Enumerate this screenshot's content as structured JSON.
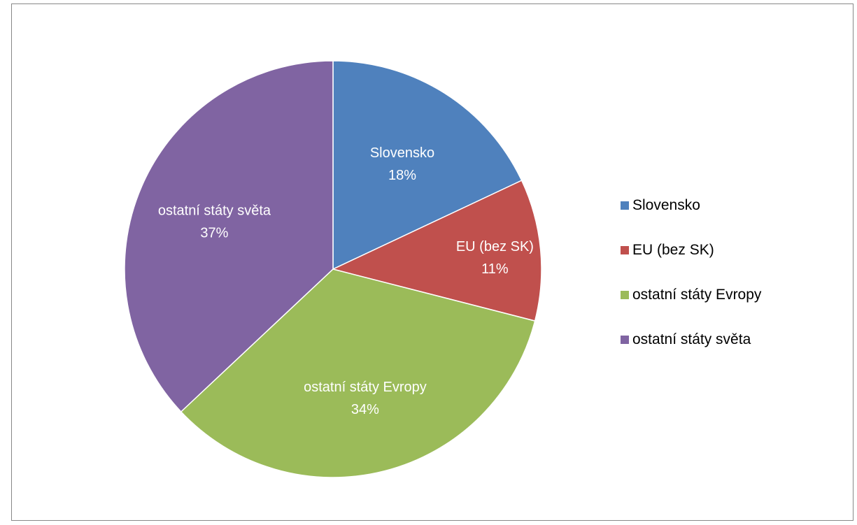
{
  "chart_data": {
    "type": "pie",
    "title": "",
    "categories": [
      "Slovensko",
      "EU (bez SK)",
      "ostatní státy Evropy",
      "ostatní státy světa"
    ],
    "values": [
      18,
      11,
      34,
      37
    ],
    "value_labels": [
      "18%",
      "11%",
      "34%",
      "37%"
    ],
    "colors": [
      "#4F81BD",
      "#C0504D",
      "#9BBB59",
      "#8064A2"
    ],
    "legend": {
      "position": "right",
      "entries": [
        "Slovensko",
        "EU (bez SK)",
        "ostatní státy Evropy",
        "ostatní státy světa"
      ]
    }
  }
}
